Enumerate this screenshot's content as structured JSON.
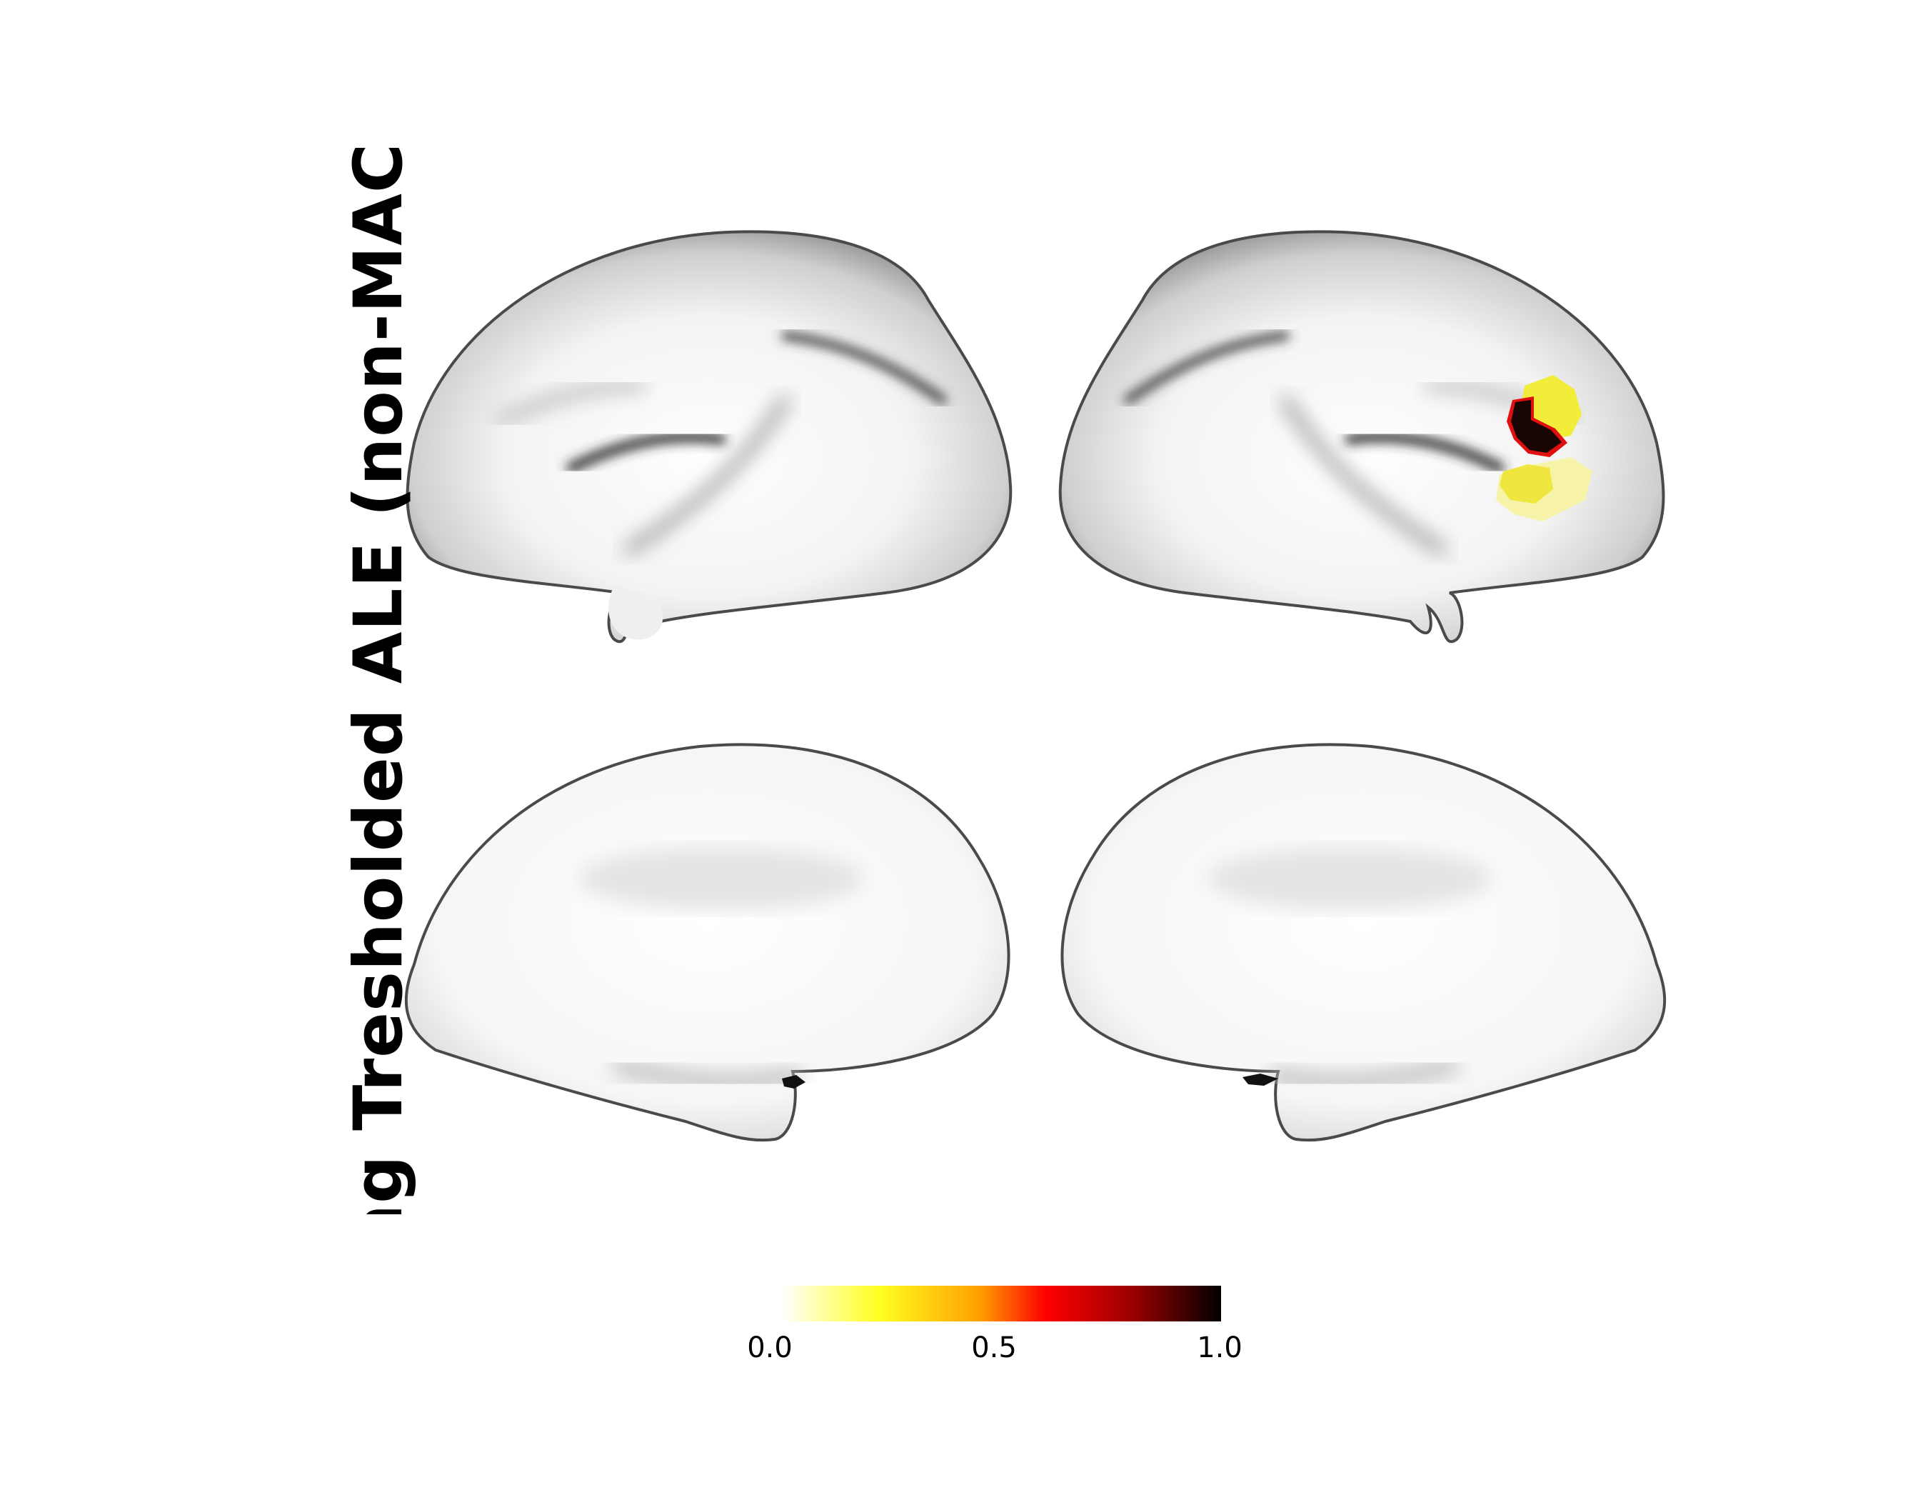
{
  "figure": {
    "side_title": "ecreasing Tresholded ALE (non-MAC",
    "panels": [
      {
        "name": "left-lateral"
      },
      {
        "name": "right-lateral"
      },
      {
        "name": "left-medial"
      },
      {
        "name": "right-medial"
      }
    ]
  },
  "colorbar": {
    "colormap": "hot_r",
    "vmin": 0.0,
    "vmax": 1.0,
    "ticks": [
      "0.0",
      "0.5",
      "1.0"
    ],
    "gradient_stops": [
      "#ffffff",
      "#ffff20",
      "#ffa000",
      "#ff0000",
      "#9a0000",
      "#000000"
    ]
  },
  "colors": {
    "surface_light": "#f6f6f6",
    "surface_dark": "#505050",
    "activation_yellow": "#f2ec3a",
    "activation_pale": "#f7f3a8",
    "activation_dark": "#1a0505",
    "activation_red_rim": "#e01010"
  }
}
